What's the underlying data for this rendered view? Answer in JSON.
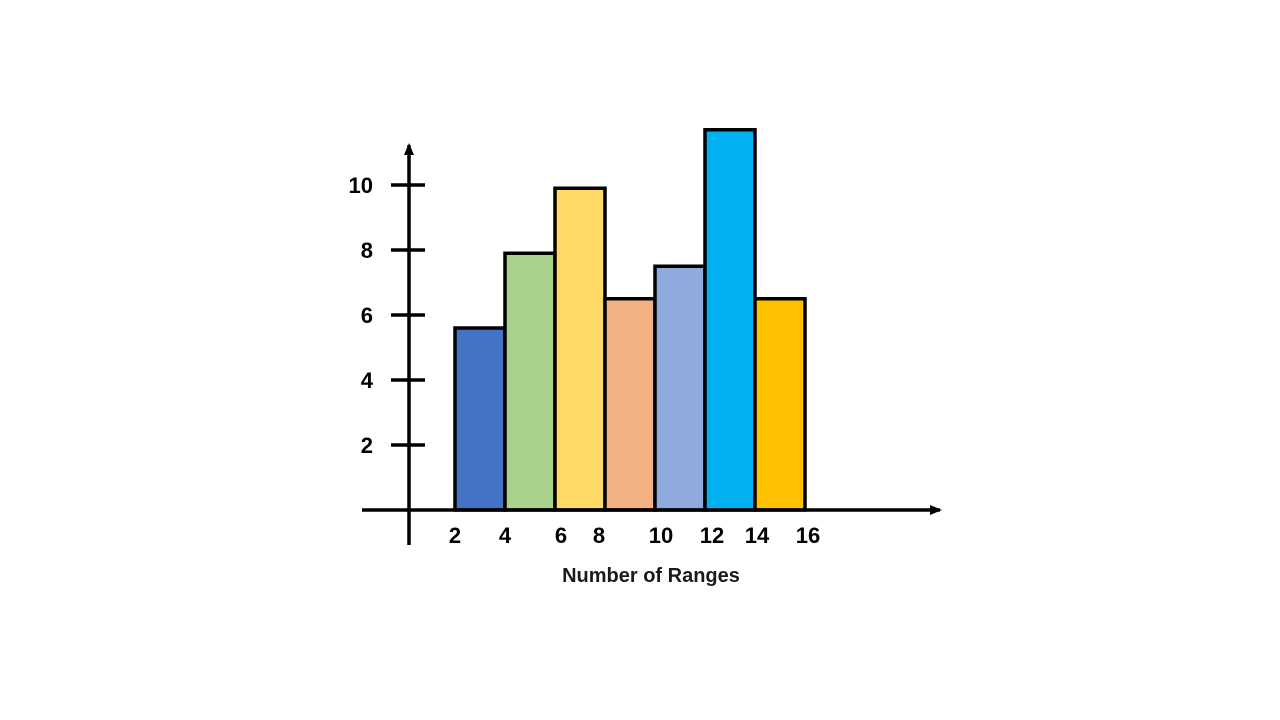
{
  "chart_data": {
    "type": "bar",
    "title": "",
    "xlabel": "Number of Ranges",
    "ylabel": "",
    "x_ticks": [
      "2",
      "4",
      "6",
      "8",
      "10",
      "12",
      "14",
      "16"
    ],
    "y_ticks": [
      "2",
      "4",
      "6",
      "8",
      "10"
    ],
    "bins": [
      [
        2,
        4
      ],
      [
        4,
        6
      ],
      [
        6,
        8
      ],
      [
        8,
        10
      ],
      [
        10,
        12
      ],
      [
        12,
        14
      ],
      [
        14,
        16
      ]
    ],
    "values": [
      5.6,
      7.9,
      9.9,
      6.5,
      7.5,
      11.7,
      6.5
    ],
    "colors": [
      "#4472C4",
      "#A9D18E",
      "#FFD966",
      "#F4B183",
      "#8FAADC",
      "#00B0F0",
      "#FFC000"
    ],
    "ylim": [
      0,
      12
    ],
    "grid": false,
    "legend": false
  }
}
